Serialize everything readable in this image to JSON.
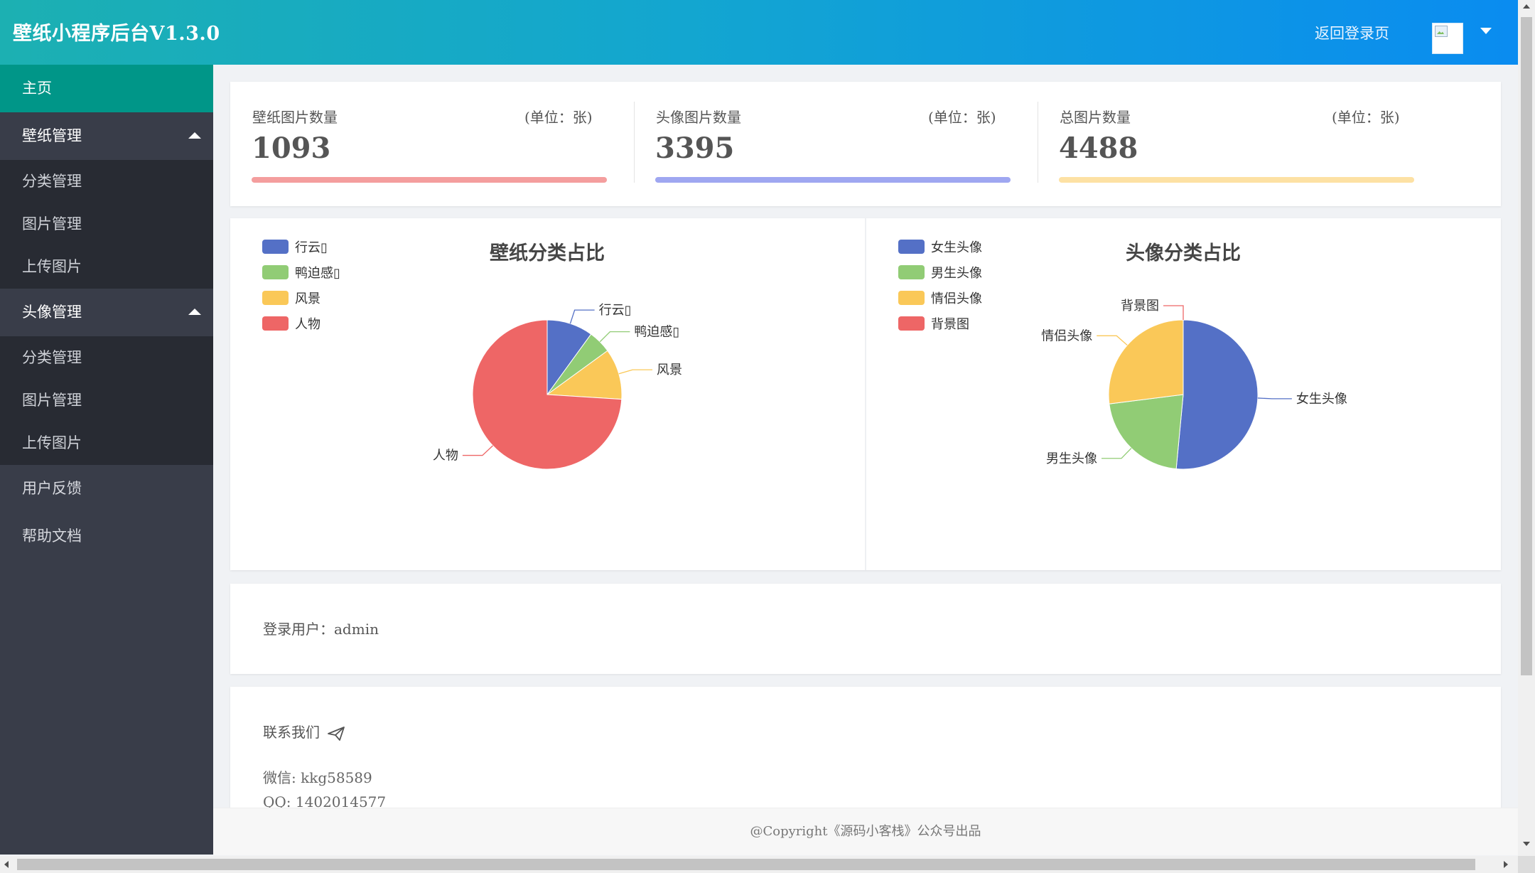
{
  "header": {
    "title": "壁纸小程序后台V1.3.0",
    "back_login": "返回登录页",
    "avatar_icon": "broken-image-icon",
    "menu_icon": "caret-down-icon"
  },
  "sidebar": {
    "home": "主页",
    "groups": [
      {
        "label": "壁纸管理",
        "items": [
          "分类管理",
          "图片管理",
          "上传图片"
        ]
      },
      {
        "label": "头像管理",
        "items": [
          "分类管理",
          "图片管理",
          "上传图片"
        ]
      }
    ],
    "feedback": "用户反馈",
    "help": "帮助文档"
  },
  "stats": [
    {
      "label": "壁纸图片数量",
      "unit": "(单位：张)",
      "value": "1093",
      "color": "#f49e9e"
    },
    {
      "label": "头像图片数量",
      "unit": "(单位：张)",
      "value": "3395",
      "color": "#9fa7f1"
    },
    {
      "label": "总图片数量",
      "unit": "(单位：张)",
      "value": "4488",
      "color": "#fde1a4"
    }
  ],
  "login": {
    "text": "登录用户：admin"
  },
  "contact": {
    "title": "联系我们",
    "wechat": "微信: kkg58589",
    "qq": "QQ: 1402014577",
    "icon": "paper-plane-icon"
  },
  "footer": {
    "text": "@Copyright《源码小客栈》公众号出品"
  },
  "colors": {
    "blue": "#5470c6",
    "green": "#91cc75",
    "yellow": "#fac858",
    "red": "#ee6666",
    "accent": "#009688"
  },
  "chart_data": [
    {
      "type": "pie",
      "title": "壁纸分类占比",
      "legend_position": "top-left",
      "categories": [
        "行云▯",
        "鸭迫感▯",
        "风景",
        "人物"
      ],
      "values": [
        10,
        5,
        11,
        74
      ],
      "colors": [
        "#5470c6",
        "#91cc75",
        "#fac858",
        "#ee6666"
      ]
    },
    {
      "type": "pie",
      "title": "头像分类占比",
      "legend_position": "top-left",
      "categories": [
        "女生头像",
        "男生头像",
        "情侣头像",
        "背景图"
      ],
      "values": [
        51.5,
        21.5,
        27,
        0
      ],
      "colors": [
        "#5470c6",
        "#91cc75",
        "#fac858",
        "#ee6666"
      ]
    }
  ]
}
